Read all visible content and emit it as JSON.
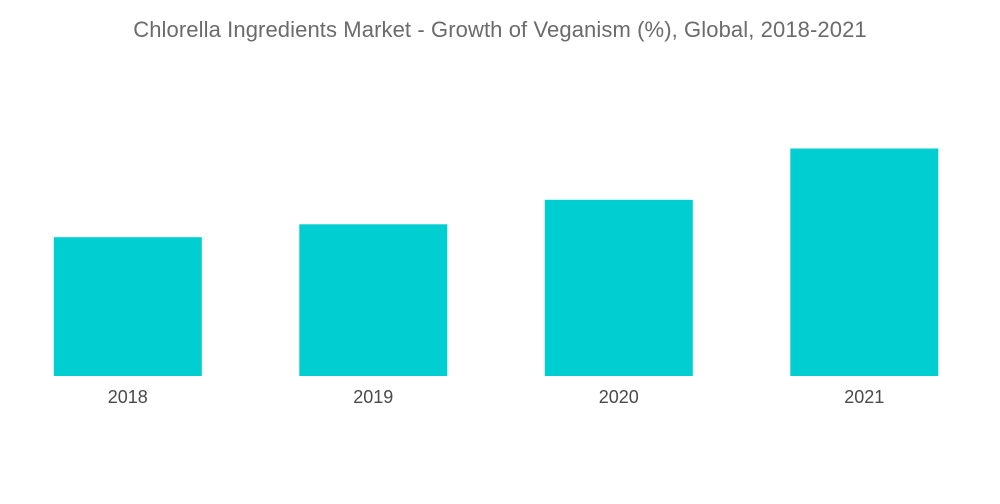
{
  "chart_data": {
    "type": "bar",
    "title": "Chlorella Ingredients Market - Growth of Veganism (%), Global, 2018-2021",
    "categories": [
      "2018",
      "2019",
      "2020",
      "2021"
    ],
    "values": [
      2.6,
      2.84,
      3.3,
      4.26
    ],
    "xlabel": "",
    "ylabel": "",
    "ylim": [
      0,
      5
    ],
    "grid": false,
    "legend": "none",
    "bar_color": "#00CED1"
  }
}
